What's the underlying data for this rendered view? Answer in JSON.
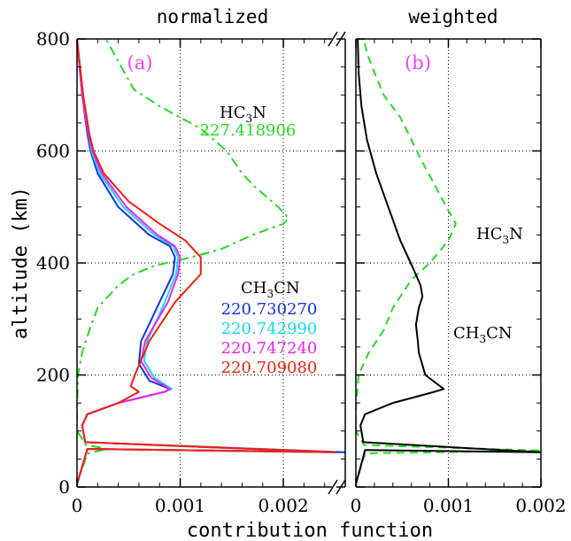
{
  "chart_data": [
    {
      "type": "line",
      "title": "normalized",
      "panel_label": "(a)",
      "xlabel": "contribution function",
      "ylabel": "altitude (km)",
      "xlim": [
        0,
        0.0026
      ],
      "ylim": [
        0,
        800
      ],
      "x_ticks": [
        "0",
        "0.001",
        "0.002"
      ],
      "y_ticks": [
        "0",
        "200",
        "400",
        "600",
        "800"
      ],
      "grid": true,
      "annotations": {
        "hc3n_mol": "HC",
        "hc3n_sub": "3",
        "hc3n_rest": "N",
        "hc3n_freq": "227.418906",
        "ch3cn_mol": "CH",
        "ch3cn_sub": "3",
        "ch3cn_rest": "CN"
      },
      "series": [
        {
          "name": "227.418906",
          "color": "#22dd22",
          "dash": "dashdot",
          "x": [
            0.0,
            0.0,
            0.0001,
            0.0003,
            9e-05,
            0.0,
            0.0,
            1e-05,
            5e-05,
            0.00012,
            0.0002,
            0.0004,
            0.00055,
            0.00075,
            0.0011,
            0.0014,
            0.0017,
            0.002,
            0.00205,
            0.00195,
            0.0017,
            0.0016,
            0.00145,
            0.0012,
            0.0008,
            0.00055,
            0.0004,
            0.00028
          ],
          "y": [
            0,
            5,
            60,
            68,
            75,
            100,
            140,
            200,
            240,
            280,
            320,
            360,
            380,
            395,
            410,
            425,
            450,
            470,
            480,
            500,
            540,
            560,
            600,
            640,
            680,
            710,
            760,
            800
          ]
        },
        {
          "name": "220.730270",
          "color": "#1133ee",
          "dash": "solid",
          "x": [
            0.0,
            0.0,
            0.0001,
            0.0026,
            8e-05,
            5e-05,
            0.0001,
            0.0004,
            0.00085,
            0.0009,
            0.0007,
            0.0006,
            0.00062,
            0.0008,
            0.00093,
            0.00095,
            0.0009,
            0.0007,
            0.0004,
            0.0002,
            0.00013,
            0.0001,
            5e-05,
            0.0
          ],
          "y": [
            0,
            5,
            68,
            62,
            80,
            110,
            130,
            150,
            170,
            175,
            190,
            220,
            260,
            330,
            380,
            410,
            430,
            450,
            500,
            560,
            600,
            630,
            700,
            800
          ]
        },
        {
          "name": "220.742990",
          "color": "#11ddee",
          "dash": "solid",
          "x": [
            0.0,
            0.0,
            0.0001,
            0.0025,
            8e-05,
            5e-05,
            0.0001,
            0.0004,
            0.00085,
            0.00092,
            0.00075,
            0.00065,
            0.00068,
            0.00085,
            0.00096,
            0.00098,
            0.00093,
            0.00075,
            0.00045,
            0.00022,
            0.00014,
            0.00011,
            5e-05,
            0.0
          ],
          "y": [
            0,
            5,
            68,
            62,
            80,
            110,
            130,
            150,
            170,
            175,
            195,
            225,
            260,
            330,
            380,
            410,
            430,
            450,
            500,
            560,
            600,
            630,
            700,
            800
          ]
        },
        {
          "name": "220.747240",
          "color": "#ee22ee",
          "dash": "solid",
          "x": [
            0.0,
            0.0,
            0.0001,
            0.0025,
            8e-05,
            5e-05,
            0.0001,
            0.0004,
            0.00085,
            0.0009,
            0.00072,
            0.00062,
            0.00066,
            0.00088,
            0.00098,
            0.001,
            0.00095,
            0.00078,
            0.00048,
            0.00024,
            0.00015,
            0.00011,
            5e-05,
            0.0
          ],
          "y": [
            0,
            5,
            68,
            62,
            80,
            110,
            130,
            150,
            170,
            175,
            195,
            225,
            260,
            330,
            380,
            410,
            430,
            450,
            500,
            560,
            600,
            630,
            700,
            800
          ]
        },
        {
          "name": "220.709080",
          "color": "#ee2211",
          "dash": "solid",
          "x": [
            0.0,
            0.0,
            0.0001,
            0.0025,
            8e-05,
            5e-05,
            0.0001,
            0.0004,
            0.0006,
            0.00052,
            0.00056,
            0.0007,
            0.00095,
            0.0012,
            0.0012,
            0.00105,
            0.0008,
            0.0005,
            0.00026,
            0.00016,
            0.00012,
            6e-05,
            0.0
          ],
          "y": [
            0,
            5,
            68,
            62,
            80,
            110,
            130,
            150,
            170,
            180,
            200,
            260,
            330,
            380,
            410,
            440,
            470,
            510,
            560,
            600,
            630,
            700,
            800
          ]
        }
      ]
    },
    {
      "type": "line",
      "title": "weighted",
      "panel_label": "(b)",
      "xlim": [
        0,
        0.002
      ],
      "ylim": [
        0,
        800
      ],
      "x_ticks": [
        "0",
        "0.001",
        "0.002"
      ],
      "grid": true,
      "annotations": {
        "hc3n_mol": "HC",
        "hc3n_sub": "3",
        "hc3n_rest": "N",
        "ch3cn_mol": "CH",
        "ch3cn_sub": "3",
        "ch3cn_rest": "CN"
      },
      "series": [
        {
          "name": "HC3N",
          "color": "#22dd22",
          "dash": "dashed",
          "x": [
            0.0,
            0.0,
            0.0001,
            0.002,
            9e-05,
            0.0,
            0.0,
            3e-05,
            0.00014,
            0.0003,
            0.0004,
            0.0006,
            0.0008,
            0.001,
            0.00108,
            0.00098,
            0.00085,
            0.00072,
            0.0006,
            0.00048,
            0.0003,
            0.0002,
            0.00013,
            8e-05
          ],
          "y": [
            0,
            5,
            60,
            65,
            75,
            100,
            140,
            200,
            240,
            280,
            320,
            370,
            400,
            440,
            470,
            500,
            540,
            580,
            620,
            660,
            700,
            740,
            770,
            800
          ]
        },
        {
          "name": "CH3CN",
          "color": "#000000",
          "dash": "solid",
          "x": [
            0.0,
            0.0,
            0.0001,
            0.002,
            8e-05,
            5e-05,
            0.0001,
            0.0004,
            0.00085,
            0.00095,
            0.00075,
            0.00068,
            0.00067,
            0.00065,
            0.00068,
            0.00072,
            0.0007,
            0.00062,
            0.00048,
            0.00035,
            0.00022,
            0.00012,
            6e-05,
            3e-05,
            2e-05
          ],
          "y": [
            0,
            5,
            66,
            62,
            80,
            110,
            130,
            150,
            170,
            175,
            200,
            240,
            260,
            290,
            320,
            340,
            360,
            390,
            440,
            500,
            560,
            620,
            680,
            740,
            800
          ]
        }
      ]
    }
  ]
}
